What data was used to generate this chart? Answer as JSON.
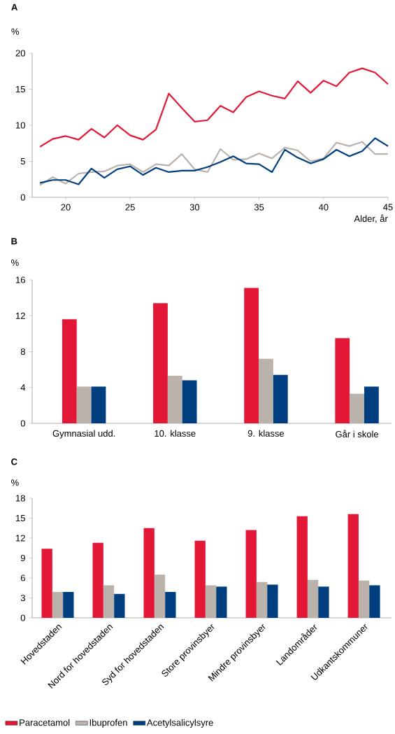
{
  "chart_data": [
    {
      "type": "line",
      "title": "A",
      "ylabel": "%",
      "xlabel": "Alder, år",
      "line_style": "solid",
      "x": [
        18,
        19,
        20,
        21,
        22,
        23,
        24,
        25,
        26,
        27,
        28,
        29,
        30,
        31,
        32,
        33,
        34,
        35,
        36,
        37,
        38,
        39,
        40,
        41,
        42,
        43,
        44,
        45
      ],
      "xlim": [
        17.4,
        45
      ],
      "ylim": [
        0,
        20
      ],
      "xticks": [
        20,
        25,
        30,
        35,
        40,
        45
      ],
      "yticks": [
        0,
        5,
        10,
        15,
        20
      ],
      "series": [
        {
          "color": "#e31837",
          "values": [
            7.0,
            8.1,
            8.5,
            8.0,
            9.5,
            8.3,
            10.0,
            8.6,
            8.0,
            9.4,
            14.4,
            12.4,
            10.5,
            10.7,
            12.7,
            11.8,
            13.9,
            14.7,
            14.1,
            13.7,
            16.1,
            14.5,
            16.2,
            15.4,
            17.3,
            17.9,
            17.3,
            15.7
          ]
        },
        {
          "color": "#bab2ab",
          "values": [
            1.7,
            2.8,
            1.9,
            3.3,
            3.5,
            3.6,
            4.4,
            4.6,
            3.5,
            4.6,
            4.4,
            6.0,
            3.9,
            3.5,
            6.7,
            5.2,
            5.3,
            6.1,
            5.4,
            6.9,
            6.5,
            5.0,
            5.4,
            7.6,
            7.1,
            7.7,
            6.0,
            6.0
          ]
        },
        {
          "color": "#003f7f",
          "values": [
            2.0,
            2.4,
            2.4,
            1.8,
            4.0,
            2.7,
            3.9,
            4.3,
            3.1,
            4.1,
            3.5,
            3.7,
            3.7,
            4.2,
            4.9,
            5.7,
            4.7,
            4.6,
            3.5,
            6.6,
            5.5,
            4.7,
            5.3,
            6.6,
            5.7,
            6.4,
            8.2,
            7.1
          ]
        }
      ]
    },
    {
      "type": "bar",
      "title": "B",
      "ylabel": "%",
      "categories": [
        "Gymnasial udd.",
        "10. klasse",
        "9. klasse",
        "Går i skole"
      ],
      "ylim": [
        0,
        16
      ],
      "yticks": [
        0,
        4,
        8,
        12,
        16
      ],
      "series": [
        {
          "color": "#e31837",
          "values": [
            11.6,
            13.4,
            15.1,
            9.5
          ]
        },
        {
          "color": "#bab2ab",
          "values": [
            4.1,
            5.3,
            7.2,
            3.3
          ]
        },
        {
          "color": "#003f7f",
          "values": [
            4.1,
            4.8,
            5.4,
            4.1
          ]
        }
      ]
    },
    {
      "type": "bar",
      "title": "C",
      "ylabel": "%",
      "legend": "bottom",
      "categories": [
        "Hovedstaden",
        "Nord for hovedstaden",
        "Syd for hovedstaden",
        "Store provinsbyer",
        "Mindre provinsbyer",
        "Landområder",
        "Udkantskommuner"
      ],
      "ylim": [
        0,
        18
      ],
      "yticks": [
        0,
        3,
        6,
        9,
        12,
        15,
        18
      ],
      "series": [
        {
          "name": "Paracetamol",
          "color": "#e31837",
          "values": [
            10.4,
            11.3,
            13.5,
            11.6,
            13.2,
            15.3,
            15.6
          ]
        },
        {
          "name": "Ibuprofen",
          "color": "#bab2ab",
          "values": [
            3.9,
            4.9,
            6.5,
            4.9,
            5.4,
            5.7,
            5.6
          ]
        },
        {
          "name": "Acetylsalicylsyre",
          "color": "#003f7f",
          "values": [
            3.9,
            3.6,
            3.9,
            4.7,
            5.0,
            4.7,
            4.9
          ]
        }
      ]
    }
  ]
}
